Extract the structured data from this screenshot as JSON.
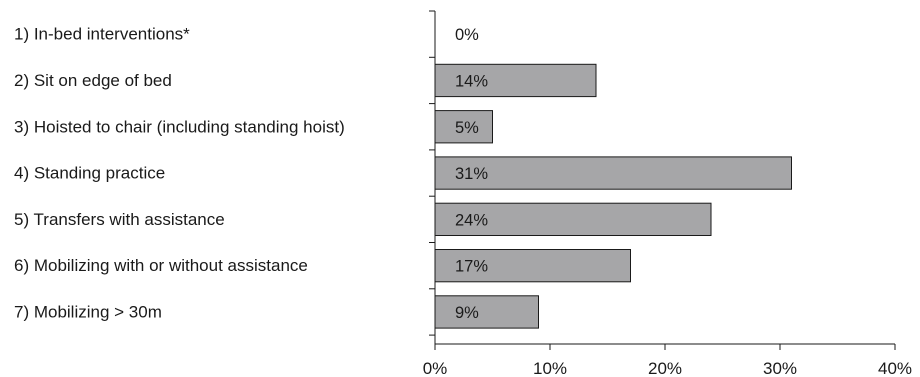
{
  "chart_data": {
    "type": "bar",
    "orientation": "horizontal",
    "categories": [
      "1) In-bed interventions*",
      "2) Sit on edge of bed",
      "3) Hoisted to chair (including standing hoist)",
      "4) Standing practice",
      "5) Transfers with assistance",
      "6) Mobilizing with or without assistance",
      "7) Mobilizing > 30m"
    ],
    "values": [
      0,
      14,
      5,
      31,
      24,
      17,
      9
    ],
    "data_labels": [
      "0%",
      "14%",
      "5%",
      "31%",
      "24%",
      "17%",
      "9%"
    ],
    "xlim": [
      0,
      40
    ],
    "xticks": [
      0,
      10,
      20,
      30,
      40
    ],
    "xtick_labels": [
      "0%",
      "10%",
      "20%",
      "30%",
      "40%"
    ],
    "title": "",
    "xlabel": "",
    "ylabel": "",
    "grid": false,
    "legend": "none",
    "colors": {
      "bar_fill": "#a6a6a8",
      "bar_stroke": "#1a1a1a",
      "axis": "#1a1a1a",
      "text": "#1a1a1a"
    }
  }
}
